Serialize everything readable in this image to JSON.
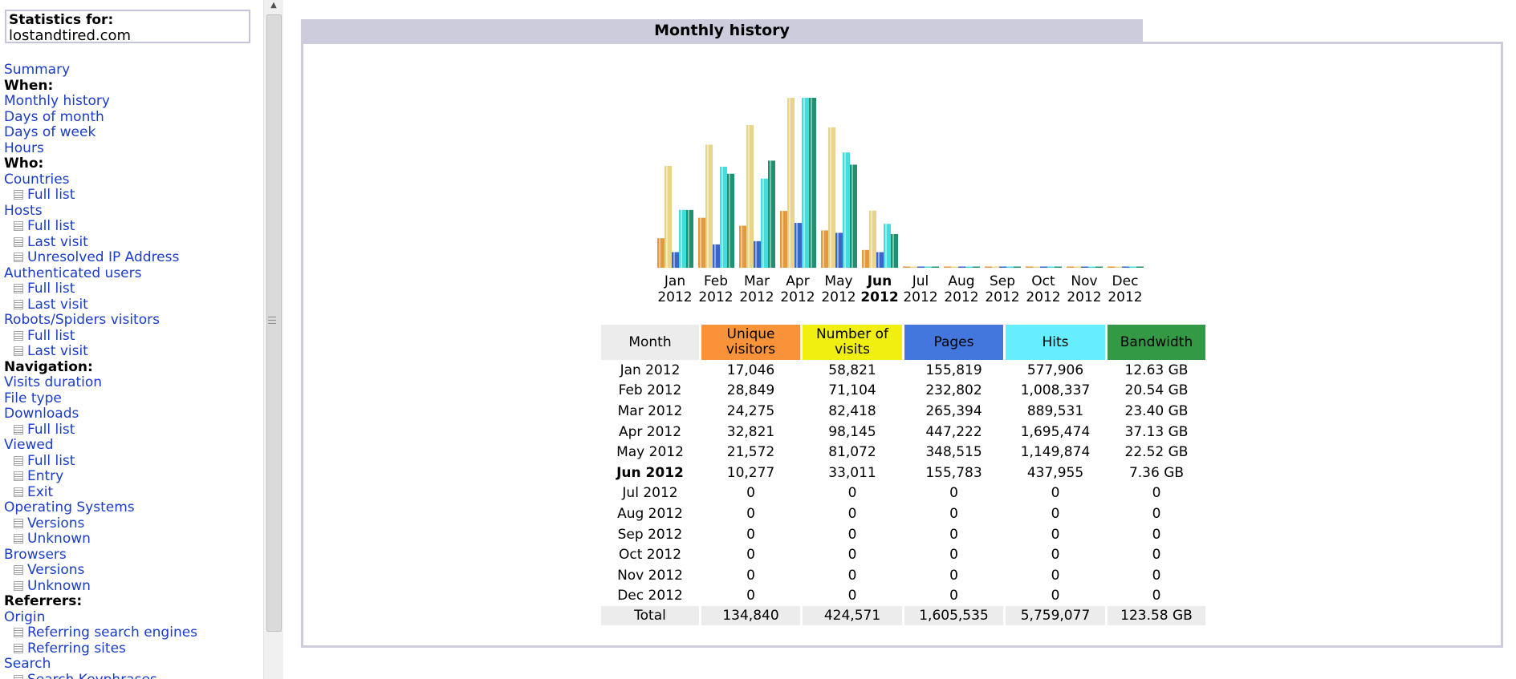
{
  "menu": {
    "stats_title": "Statistics for:",
    "stats_site": "lostandtired.com",
    "items": [
      {
        "label": "Summary",
        "type": "link",
        "name": "summary"
      },
      {
        "label": "When:",
        "type": "header",
        "name": "when"
      },
      {
        "label": "Monthly history",
        "type": "link",
        "name": "monthly-history"
      },
      {
        "label": "Days of month",
        "type": "link",
        "name": "days-of-month"
      },
      {
        "label": "Days of week",
        "type": "link",
        "name": "days-of-week"
      },
      {
        "label": "Hours",
        "type": "link",
        "name": "hours"
      },
      {
        "label": "Who:",
        "type": "header",
        "name": "who"
      },
      {
        "label": "Countries",
        "type": "link",
        "name": "countries"
      },
      {
        "label": "Full list",
        "type": "sub",
        "name": "countries-full-list"
      },
      {
        "label": "Hosts",
        "type": "link",
        "name": "hosts"
      },
      {
        "label": "Full list",
        "type": "sub",
        "name": "hosts-full-list"
      },
      {
        "label": "Last visit",
        "type": "sub",
        "name": "hosts-last-visit"
      },
      {
        "label": "Unresolved IP Address",
        "type": "sub",
        "name": "hosts-unresolved-ip"
      },
      {
        "label": "Authenticated users",
        "type": "link",
        "name": "authenticated-users"
      },
      {
        "label": "Full list",
        "type": "sub",
        "name": "authenticated-full-list"
      },
      {
        "label": "Last visit",
        "type": "sub",
        "name": "authenticated-last-visit"
      },
      {
        "label": "Robots/Spiders visitors",
        "type": "link",
        "name": "robots-visitors"
      },
      {
        "label": "Full list",
        "type": "sub",
        "name": "robots-full-list"
      },
      {
        "label": "Last visit",
        "type": "sub",
        "name": "robots-last-visit"
      },
      {
        "label": "Navigation:",
        "type": "header",
        "name": "navigation"
      },
      {
        "label": "Visits duration",
        "type": "link",
        "name": "visits-duration"
      },
      {
        "label": "File type",
        "type": "link",
        "name": "file-type"
      },
      {
        "label": "Downloads",
        "type": "link",
        "name": "downloads"
      },
      {
        "label": "Full list",
        "type": "sub",
        "name": "downloads-full-list"
      },
      {
        "label": "Viewed",
        "type": "link",
        "name": "viewed"
      },
      {
        "label": "Full list",
        "type": "sub",
        "name": "viewed-full-list"
      },
      {
        "label": "Entry",
        "type": "sub",
        "name": "viewed-entry"
      },
      {
        "label": "Exit",
        "type": "sub",
        "name": "viewed-exit"
      },
      {
        "label": "Operating Systems",
        "type": "link",
        "name": "operating-systems"
      },
      {
        "label": "Versions",
        "type": "sub",
        "name": "os-versions"
      },
      {
        "label": "Unknown",
        "type": "sub",
        "name": "os-unknown"
      },
      {
        "label": "Browsers",
        "type": "link",
        "name": "browsers"
      },
      {
        "label": "Versions",
        "type": "sub",
        "name": "browsers-versions"
      },
      {
        "label": "Unknown",
        "type": "sub",
        "name": "browsers-unknown"
      },
      {
        "label": "Referrers:",
        "type": "header",
        "name": "referrers"
      },
      {
        "label": "Origin",
        "type": "link",
        "name": "origin"
      },
      {
        "label": "Referring search engines",
        "type": "sub",
        "name": "referring-search-engines"
      },
      {
        "label": "Referring sites",
        "type": "sub",
        "name": "referring-sites"
      },
      {
        "label": "Search",
        "type": "link",
        "name": "search"
      },
      {
        "label": "Search Keyphrases",
        "type": "sub",
        "name": "search-keyphrases"
      }
    ]
  },
  "main": {
    "title": "Monthly history"
  },
  "colors": {
    "unique_visitors": "#f8933a",
    "visits": "#f0ef10",
    "pages": "#4477dd",
    "hits": "#66eeff",
    "bandwidth": "#339944",
    "month_header": "#ececec"
  },
  "table": {
    "headers": [
      "Month",
      "Unique visitors",
      "Number of visits",
      "Pages",
      "Hits",
      "Bandwidth"
    ],
    "current_month": "Jun 2012",
    "rows": [
      [
        "Jan 2012",
        "17,046",
        "58,821",
        "155,819",
        "577,906",
        "12.63 GB"
      ],
      [
        "Feb 2012",
        "28,849",
        "71,104",
        "232,802",
        "1,008,337",
        "20.54 GB"
      ],
      [
        "Mar 2012",
        "24,275",
        "82,418",
        "265,394",
        "889,531",
        "23.40 GB"
      ],
      [
        "Apr 2012",
        "32,821",
        "98,145",
        "447,222",
        "1,695,474",
        "37.13 GB"
      ],
      [
        "May 2012",
        "21,572",
        "81,072",
        "348,515",
        "1,149,874",
        "22.52 GB"
      ],
      [
        "Jun 2012",
        "10,277",
        "33,011",
        "155,783",
        "437,955",
        "7.36 GB"
      ],
      [
        "Jul 2012",
        "0",
        "0",
        "0",
        "0",
        "0"
      ],
      [
        "Aug 2012",
        "0",
        "0",
        "0",
        "0",
        "0"
      ],
      [
        "Sep 2012",
        "0",
        "0",
        "0",
        "0",
        "0"
      ],
      [
        "Oct 2012",
        "0",
        "0",
        "0",
        "0",
        "0"
      ],
      [
        "Nov 2012",
        "0",
        "0",
        "0",
        "0",
        "0"
      ],
      [
        "Dec 2012",
        "0",
        "0",
        "0",
        "0",
        "0"
      ]
    ],
    "total": [
      "Total",
      "134,840",
      "424,571",
      "1,605,535",
      "5,759,077",
      "123.58 GB"
    ]
  },
  "chart_data": {
    "type": "bar",
    "categories": [
      "Jan",
      "Feb",
      "Mar",
      "Apr",
      "May",
      "Jun",
      "Jul",
      "Aug",
      "Sep",
      "Oct",
      "Nov",
      "Dec"
    ],
    "category_years": [
      "2012",
      "2012",
      "2012",
      "2012",
      "2012",
      "2012",
      "2012",
      "2012",
      "2012",
      "2012",
      "2012",
      "2012"
    ],
    "current_category": "Jun",
    "series": [
      {
        "key": "unique_visitors",
        "values": [
          17046,
          28849,
          24275,
          32821,
          21572,
          10277,
          0,
          0,
          0,
          0,
          0,
          0
        ],
        "color": "#e39a3f"
      },
      {
        "key": "visits",
        "values": [
          58821,
          71104,
          82418,
          98145,
          81072,
          33011,
          0,
          0,
          0,
          0,
          0,
          0
        ],
        "color": "#e8d58a"
      },
      {
        "key": "pages",
        "values": [
          155819,
          232802,
          265394,
          447222,
          348515,
          155783,
          0,
          0,
          0,
          0,
          0,
          0
        ],
        "color": "#3a66cc"
      },
      {
        "key": "hits",
        "values": [
          577906,
          1008337,
          889531,
          1695474,
          1149874,
          437955,
          0,
          0,
          0,
          0,
          0,
          0
        ],
        "color": "#44dddd"
      },
      {
        "key": "bandwidth",
        "values": [
          12.63,
          20.54,
          23.4,
          37.13,
          22.52,
          7.36,
          0,
          0,
          0,
          0,
          0,
          0
        ],
        "color": "#1f9070"
      }
    ],
    "scale_groups": [
      [
        "unique_visitors",
        "visits"
      ],
      [
        "pages",
        "hits"
      ],
      [
        "bandwidth"
      ]
    ]
  }
}
